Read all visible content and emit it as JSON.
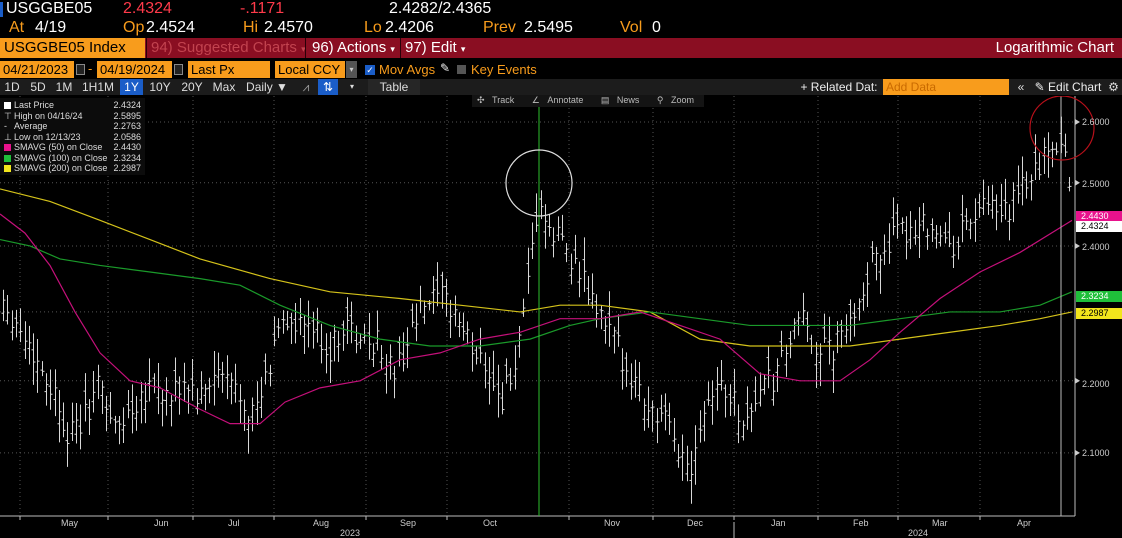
{
  "header": {
    "ticker": "USGGBE05",
    "last": "2.4324",
    "change": "-.1171",
    "bid_ask": "2.4282/2.4365",
    "at_label": "At",
    "at_value": "4/19",
    "open_label": "Op",
    "open": "2.4524",
    "high_label": "Hi",
    "high": "2.4570",
    "low_label": "Lo",
    "low": "2.4206",
    "prev_label": "Prev",
    "prev": "2.5495",
    "vol_label": "Vol",
    "vol": "0"
  },
  "menubar": {
    "security": "USGGBE05 Index",
    "suggested": "94) Suggested Charts",
    "actions": "96) Actions",
    "edit": "97) Edit",
    "chart_type": "Logarithmic Chart"
  },
  "controls": {
    "start_date": "04/21/2023",
    "end_date": "04/19/2024",
    "field": "Last Px",
    "currency": "Local CCY",
    "mov_avgs": "Mov Avgs",
    "key_events": "Key Events"
  },
  "toolbar": {
    "periods": [
      "1D",
      "5D",
      "1M",
      "1H1M",
      "1Y",
      "10Y",
      "20Y",
      "Max"
    ],
    "selected_period": "1Y",
    "frequency": "Daily",
    "table": "Table",
    "related": "+ Related Dat:",
    "add_data_placeholder": "Add Data",
    "edit_chart": "Edit Chart"
  },
  "chart_tools": {
    "track": "Track",
    "annotate": "Annotate",
    "news": "News",
    "zoom": "Zoom"
  },
  "legend": [
    {
      "label": "Last Price",
      "value": "2.4324",
      "color": "#ffffff"
    },
    {
      "label": "High on 04/16/24",
      "value": "2.5895",
      "color": ""
    },
    {
      "label": "Average",
      "value": "2.2763",
      "color": ""
    },
    {
      "label": "Low on 12/13/23",
      "value": "2.0586",
      "color": ""
    },
    {
      "label": "SMAVG (50)  on Close",
      "value": "2.4430",
      "color": "#e8128c"
    },
    {
      "label": "SMAVG (100)  on Close",
      "value": "2.3234",
      "color": "#1fbf3a"
    },
    {
      "label": "SMAVG (200)  on Close",
      "value": "2.2987",
      "color": "#f2e51c"
    }
  ],
  "chart_data": {
    "type": "line",
    "title": "USGGBE05 Index - Logarithmic Chart",
    "xlabel": "",
    "ylabel": "",
    "ylim": [
      2.05,
      2.63
    ],
    "yticks": [
      "2.6000",
      "2.5000",
      "2.4000",
      "2.2000",
      "2.1000"
    ],
    "x": [
      "May",
      "Jun",
      "Jul",
      "Aug",
      "Sep",
      "Oct",
      "Nov",
      "Dec",
      "Jan",
      "Feb",
      "Mar",
      "Apr"
    ],
    "year_labels": [
      "2023",
      "2024"
    ],
    "series": [
      {
        "name": "Last Price (approx monthly)",
        "values": [
          2.18,
          2.17,
          2.24,
          2.26,
          2.3,
          2.45,
          2.22,
          2.12,
          2.25,
          2.4,
          2.43,
          2.55
        ]
      },
      {
        "name": "SMAVG (50)",
        "values": [
          2.33,
          2.2,
          2.18,
          2.24,
          2.27,
          2.3,
          2.29,
          2.24,
          2.21,
          2.29,
          2.38,
          2.44
        ]
      },
      {
        "name": "SMAVG (100)",
        "values": [
          2.35,
          2.31,
          2.29,
          2.26,
          2.26,
          2.27,
          2.28,
          2.26,
          2.24,
          2.27,
          2.3,
          2.32
        ]
      },
      {
        "name": "SMAVG (200)",
        "values": [
          2.49,
          2.44,
          2.39,
          2.33,
          2.31,
          2.3,
          2.31,
          2.27,
          2.25,
          2.26,
          2.28,
          2.3
        ]
      }
    ],
    "axis_tags": {
      "last": "2.4324",
      "smavg50": "2.4430",
      "smavg100": "2.3234",
      "smavg200": "2.2987"
    },
    "annotations": [
      "circle near Oct 2023 peak ~2.49",
      "red circle near Apr 2024 high ~2.59"
    ]
  }
}
